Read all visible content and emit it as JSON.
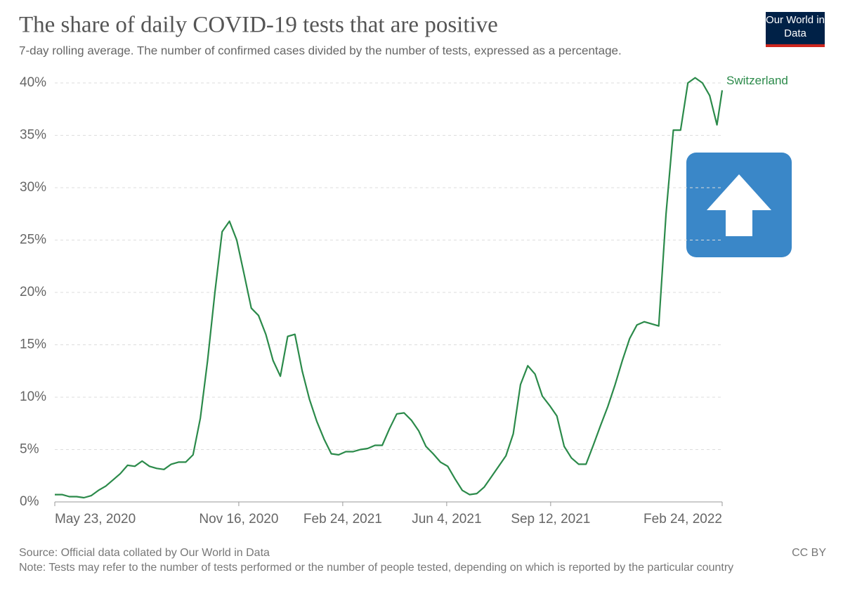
{
  "chart_data": {
    "type": "line",
    "title": "The share of daily COVID-19 tests that are positive",
    "subtitle": "7-day rolling average. The number of confirmed cases divided by the number of tests, expressed as a percentage.",
    "logo": "Our World in Data",
    "source": "Source: Official data collated by Our World in Data",
    "license": "CC BY",
    "note": "Note: Tests may refer to the number of tests performed or the number of people tested, depending on which is reported by the particular country",
    "x": [
      "2020-05-23",
      "2020-05-30",
      "2020-06-06",
      "2020-06-13",
      "2020-06-20",
      "2020-06-27",
      "2020-07-04",
      "2020-07-11",
      "2020-07-18",
      "2020-07-25",
      "2020-08-01",
      "2020-08-08",
      "2020-08-15",
      "2020-08-22",
      "2020-08-29",
      "2020-09-05",
      "2020-09-12",
      "2020-09-19",
      "2020-09-26",
      "2020-10-03",
      "2020-10-10",
      "2020-10-17",
      "2020-10-24",
      "2020-10-31",
      "2020-11-07",
      "2020-11-14",
      "2020-11-21",
      "2020-11-28",
      "2020-12-05",
      "2020-12-12",
      "2020-12-19",
      "2020-12-26",
      "2021-01-02",
      "2021-01-09",
      "2021-01-16",
      "2021-01-23",
      "2021-01-30",
      "2021-02-06",
      "2021-02-13",
      "2021-02-20",
      "2021-02-27",
      "2021-03-06",
      "2021-03-13",
      "2021-03-20",
      "2021-03-27",
      "2021-04-03",
      "2021-04-10",
      "2021-04-17",
      "2021-04-24",
      "2021-05-01",
      "2021-05-08",
      "2021-05-15",
      "2021-05-22",
      "2021-05-29",
      "2021-06-05",
      "2021-06-12",
      "2021-06-19",
      "2021-06-26",
      "2021-07-03",
      "2021-07-10",
      "2021-07-17",
      "2021-07-24",
      "2021-07-31",
      "2021-08-07",
      "2021-08-14",
      "2021-08-21",
      "2021-08-28",
      "2021-09-04",
      "2021-09-11",
      "2021-09-18",
      "2021-09-25",
      "2021-10-02",
      "2021-10-09",
      "2021-10-16",
      "2021-10-23",
      "2021-10-30",
      "2021-11-06",
      "2021-11-13",
      "2021-11-20",
      "2021-11-27",
      "2021-12-04",
      "2021-12-11",
      "2021-12-18",
      "2021-12-25",
      "2022-01-01",
      "2022-01-08",
      "2022-01-15",
      "2022-01-22",
      "2022-01-29",
      "2022-02-05",
      "2022-02-12",
      "2022-02-19",
      "2022-02-24"
    ],
    "series": [
      {
        "name": "Switzerland",
        "color": "#2b8a4a",
        "values": [
          0.7,
          0.7,
          0.5,
          0.5,
          0.4,
          0.6,
          1.1,
          1.5,
          2.1,
          2.7,
          3.5,
          3.4,
          3.9,
          3.4,
          3.2,
          3.1,
          3.6,
          3.8,
          3.8,
          4.5,
          8.0,
          13.5,
          20.0,
          25.8,
          26.8,
          25.0,
          21.8,
          18.5,
          17.8,
          16.0,
          13.5,
          12.0,
          15.8,
          16.0,
          12.5,
          9.8,
          7.7,
          6.0,
          4.6,
          4.5,
          4.8,
          4.8,
          5.0,
          5.1,
          5.4,
          5.4,
          7.0,
          8.4,
          8.5,
          7.8,
          6.8,
          5.3,
          4.6,
          3.8,
          3.4,
          2.2,
          1.1,
          0.7,
          0.8,
          1.4,
          2.4,
          3.4,
          4.4,
          6.5,
          11.2,
          13.0,
          12.2,
          10.1,
          9.2,
          8.2,
          5.3,
          4.2,
          3.6,
          3.6,
          5.4,
          7.3,
          9.1,
          11.2,
          13.5,
          15.6,
          16.9,
          17.2,
          17.0,
          16.8,
          27.5,
          35.5,
          35.5,
          40.0,
          40.5,
          40.0,
          38.8,
          36.0,
          39.3
        ]
      }
    ],
    "xlim": [
      "2020-05-23",
      "2022-02-24"
    ],
    "xticks": [
      {
        "value": "2020-05-23",
        "label": "May 23, 2020"
      },
      {
        "value": "2020-11-16",
        "label": "Nov 16, 2020"
      },
      {
        "value": "2021-02-24",
        "label": "Feb 24, 2021"
      },
      {
        "value": "2021-06-04",
        "label": "Jun 4, 2021"
      },
      {
        "value": "2021-09-12",
        "label": "Sep 12, 2021"
      },
      {
        "value": "2022-02-24",
        "label": "Feb 24, 2022"
      }
    ],
    "ylim": [
      0,
      40
    ],
    "yticks": [
      {
        "value": 0,
        "label": "0%"
      },
      {
        "value": 5,
        "label": "5%"
      },
      {
        "value": 10,
        "label": "10%"
      },
      {
        "value": 15,
        "label": "15%"
      },
      {
        "value": 20,
        "label": "20%"
      },
      {
        "value": 25,
        "label": "25%"
      },
      {
        "value": 30,
        "label": "30%"
      },
      {
        "value": 35,
        "label": "35%"
      },
      {
        "value": 40,
        "label": "40%"
      }
    ],
    "grid": true
  }
}
